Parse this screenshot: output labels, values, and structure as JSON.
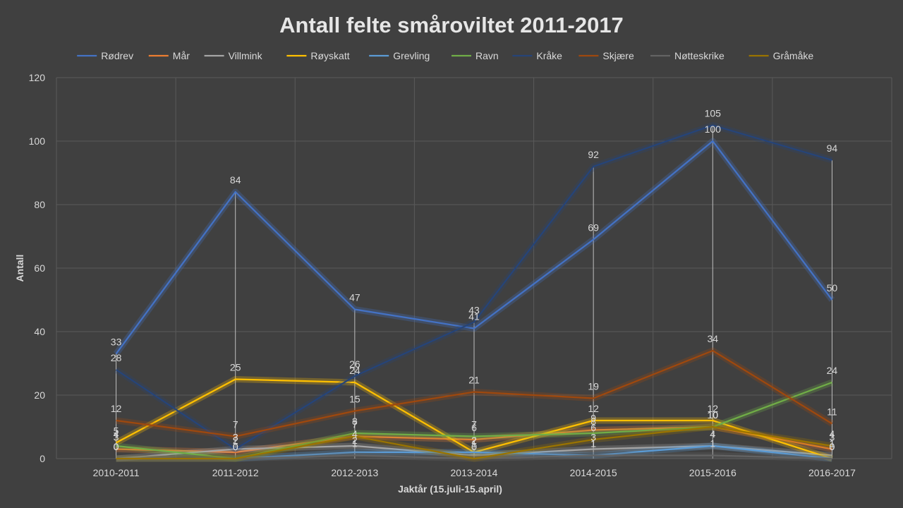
{
  "chart_data": {
    "type": "line",
    "title": "Antall felte småroviltet 2011-2017",
    "xlabel": "Jaktår (15.juli-15.april)",
    "ylabel": "Antall",
    "ylim": [
      0,
      120
    ],
    "yticks": [
      "0",
      "20",
      "40",
      "60",
      "80",
      "100",
      "120"
    ],
    "grid": true,
    "legend_position": "top",
    "categories": [
      "2010-2011",
      "2011-2012",
      "2012-2013",
      "2013-2014",
      "2014-2015",
      "2015-2016",
      "2016-2017"
    ],
    "series": [
      {
        "name": "Rødrev",
        "color": "#4472c4",
        "values": [
          33,
          84,
          47,
          41,
          69,
          100,
          50
        ]
      },
      {
        "name": "Mår",
        "color": "#ed7d31",
        "values": [
          3,
          2,
          7,
          6,
          9,
          10,
          3
        ]
      },
      {
        "name": "Villmink",
        "color": "#a5a5a5",
        "values": [
          0,
          3,
          4,
          1,
          3,
          4,
          1
        ]
      },
      {
        "name": "Røyskatt",
        "color": "#ffc000",
        "values": [
          5,
          25,
          24,
          2,
          12,
          12,
          0
        ]
      },
      {
        "name": "Grevling",
        "color": "#5b9bd5",
        "values": [
          0,
          0,
          2,
          2,
          1,
          4,
          0
        ]
      },
      {
        "name": "Ravn",
        "color": "#70ad47",
        "values": [
          4,
          0,
          8,
          7,
          8,
          10,
          24
        ]
      },
      {
        "name": "Kråke",
        "color": "#264478",
        "values": [
          28,
          3,
          26,
          43,
          92,
          105,
          94
        ]
      },
      {
        "name": "Skjære",
        "color": "#9e480e",
        "values": [
          12,
          7,
          15,
          21,
          19,
          34,
          11
        ]
      },
      {
        "name": "Nøtteskrike",
        "color": "#636363",
        "values": [
          0,
          0,
          1,
          0,
          1,
          1,
          0
        ]
      },
      {
        "name": "Gråmåke",
        "color": "#997300",
        "values": [
          0,
          0,
          7,
          0,
          6,
          10,
          4
        ]
      }
    ]
  }
}
